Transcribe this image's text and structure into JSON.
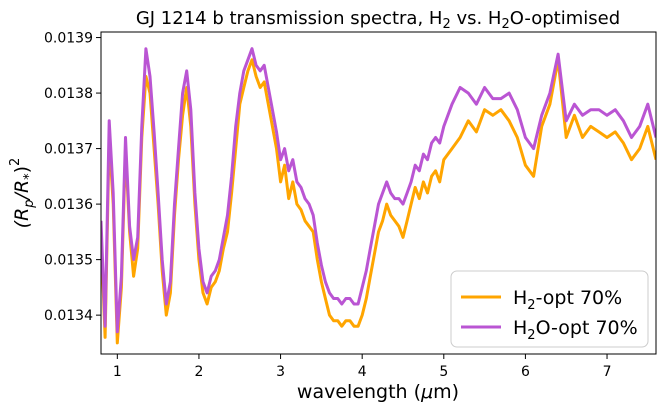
{
  "chart_data": {
    "type": "line",
    "title_parts": [
      "GJ 1214 b transmission spectra, H",
      "2",
      " vs. H",
      "2",
      "O-optimised"
    ],
    "xlabel_parts": [
      "wavelength (",
      "μ",
      "m)"
    ],
    "ylabel_parts": [
      "(R",
      "p",
      "/R",
      "*",
      ")",
      "2"
    ],
    "xlim": [
      0.8,
      7.6
    ],
    "ylim": [
      0.01333,
      0.01391
    ],
    "xticks": [
      1,
      2,
      3,
      4,
      5,
      6,
      7
    ],
    "yticks": [
      0.0134,
      0.0135,
      0.0136,
      0.0137,
      0.0138,
      0.0139
    ],
    "ytick_labels": [
      "0.0134",
      "0.0135",
      "0.0136",
      "0.0137",
      "0.0138",
      "0.0139"
    ],
    "legend_position": "lower-right",
    "series": [
      {
        "name_parts": [
          "H",
          "2",
          "-opt 70%"
        ],
        "color": "#FFA500",
        "x": [
          0.8,
          0.85,
          0.9,
          0.95,
          1.0,
          1.05,
          1.1,
          1.15,
          1.2,
          1.25,
          1.3,
          1.35,
          1.4,
          1.45,
          1.5,
          1.55,
          1.6,
          1.65,
          1.7,
          1.75,
          1.8,
          1.85,
          1.9,
          1.95,
          2.0,
          2.05,
          2.1,
          2.15,
          2.2,
          2.25,
          2.3,
          2.35,
          2.4,
          2.45,
          2.5,
          2.55,
          2.6,
          2.65,
          2.7,
          2.75,
          2.8,
          2.85,
          2.9,
          2.95,
          3.0,
          3.05,
          3.1,
          3.15,
          3.2,
          3.25,
          3.3,
          3.35,
          3.4,
          3.45,
          3.5,
          3.55,
          3.6,
          3.65,
          3.7,
          3.75,
          3.8,
          3.85,
          3.9,
          3.95,
          4.0,
          4.05,
          4.1,
          4.15,
          4.2,
          4.25,
          4.3,
          4.35,
          4.4,
          4.45,
          4.5,
          4.55,
          4.6,
          4.65,
          4.7,
          4.75,
          4.8,
          4.85,
          4.9,
          4.95,
          5.0,
          5.1,
          5.2,
          5.3,
          5.4,
          5.5,
          5.6,
          5.7,
          5.8,
          5.9,
          6.0,
          6.1,
          6.2,
          6.3,
          6.4,
          6.5,
          6.6,
          6.7,
          6.8,
          6.9,
          7.0,
          7.1,
          7.2,
          7.3,
          7.4,
          7.5,
          7.6
        ],
        "y": [
          0.01355,
          0.01336,
          0.01372,
          0.0136,
          0.01335,
          0.01345,
          0.0137,
          0.01355,
          0.01347,
          0.01352,
          0.01372,
          0.01383,
          0.0138,
          0.0137,
          0.0136,
          0.01348,
          0.0134,
          0.01344,
          0.01358,
          0.01368,
          0.01376,
          0.01381,
          0.01374,
          0.0136,
          0.0135,
          0.01344,
          0.01342,
          0.01345,
          0.01346,
          0.01348,
          0.01352,
          0.01355,
          0.01362,
          0.0137,
          0.01378,
          0.01381,
          0.01384,
          0.01386,
          0.01383,
          0.01381,
          0.01382,
          0.01378,
          0.01374,
          0.0137,
          0.01364,
          0.01367,
          0.01361,
          0.01364,
          0.0136,
          0.01359,
          0.01357,
          0.01356,
          0.01355,
          0.0135,
          0.01346,
          0.01343,
          0.0134,
          0.01339,
          0.01339,
          0.01338,
          0.01339,
          0.01339,
          0.01338,
          0.01338,
          0.0134,
          0.01343,
          0.01347,
          0.01351,
          0.01355,
          0.01357,
          0.0136,
          0.01358,
          0.01357,
          0.01356,
          0.01354,
          0.01357,
          0.0136,
          0.01363,
          0.01361,
          0.01364,
          0.01362,
          0.01365,
          0.01366,
          0.01364,
          0.01368,
          0.0137,
          0.01372,
          0.01375,
          0.01373,
          0.01377,
          0.01376,
          0.01377,
          0.01375,
          0.01372,
          0.01367,
          0.01365,
          0.01374,
          0.01378,
          0.01386,
          0.01372,
          0.01376,
          0.01372,
          0.01374,
          0.01373,
          0.01372,
          0.01373,
          0.01371,
          0.01368,
          0.0137,
          0.01374,
          0.01368
        ]
      },
      {
        "name_parts": [
          "H",
          "2",
          "O-opt 70%"
        ],
        "color": "#BA55D3",
        "x": [
          0.8,
          0.85,
          0.9,
          0.95,
          1.0,
          1.05,
          1.1,
          1.15,
          1.2,
          1.25,
          1.3,
          1.35,
          1.4,
          1.45,
          1.5,
          1.55,
          1.6,
          1.65,
          1.7,
          1.75,
          1.8,
          1.85,
          1.9,
          1.95,
          2.0,
          2.05,
          2.1,
          2.15,
          2.2,
          2.25,
          2.3,
          2.35,
          2.4,
          2.45,
          2.5,
          2.55,
          2.6,
          2.65,
          2.7,
          2.75,
          2.8,
          2.85,
          2.9,
          2.95,
          3.0,
          3.05,
          3.1,
          3.15,
          3.2,
          3.25,
          3.3,
          3.35,
          3.4,
          3.45,
          3.5,
          3.55,
          3.6,
          3.65,
          3.7,
          3.75,
          3.8,
          3.85,
          3.9,
          3.95,
          4.0,
          4.05,
          4.1,
          4.15,
          4.2,
          4.25,
          4.3,
          4.35,
          4.4,
          4.45,
          4.5,
          4.55,
          4.6,
          4.65,
          4.7,
          4.75,
          4.8,
          4.85,
          4.9,
          4.95,
          5.0,
          5.1,
          5.2,
          5.3,
          5.4,
          5.5,
          5.6,
          5.7,
          5.8,
          5.9,
          6.0,
          6.1,
          6.2,
          6.3,
          6.4,
          6.5,
          6.6,
          6.7,
          6.8,
          6.9,
          7.0,
          7.1,
          7.2,
          7.3,
          7.4,
          7.5,
          7.6
        ],
        "y": [
          0.01357,
          0.01338,
          0.01375,
          0.01362,
          0.01337,
          0.01347,
          0.01372,
          0.01356,
          0.0135,
          0.01354,
          0.01374,
          0.01388,
          0.01383,
          0.01373,
          0.01362,
          0.0135,
          0.01342,
          0.01346,
          0.0136,
          0.0137,
          0.0138,
          0.01384,
          0.01377,
          0.01362,
          0.01352,
          0.01346,
          0.01344,
          0.01347,
          0.01348,
          0.0135,
          0.01354,
          0.01358,
          0.01365,
          0.01374,
          0.0138,
          0.01384,
          0.01386,
          0.01388,
          0.01385,
          0.01384,
          0.01385,
          0.01381,
          0.01377,
          0.01373,
          0.01368,
          0.0137,
          0.01366,
          0.01368,
          0.01364,
          0.01363,
          0.01361,
          0.0136,
          0.01358,
          0.01353,
          0.01349,
          0.01346,
          0.01344,
          0.01343,
          0.01343,
          0.01342,
          0.01343,
          0.01343,
          0.01342,
          0.01342,
          0.01345,
          0.01348,
          0.01352,
          0.01356,
          0.0136,
          0.01362,
          0.01364,
          0.01362,
          0.01361,
          0.01361,
          0.0136,
          0.01362,
          0.01364,
          0.01367,
          0.01366,
          0.01369,
          0.01368,
          0.01371,
          0.01372,
          0.01371,
          0.01374,
          0.01378,
          0.01381,
          0.0138,
          0.01378,
          0.01381,
          0.01379,
          0.01379,
          0.0138,
          0.01377,
          0.01372,
          0.0137,
          0.01376,
          0.0138,
          0.01387,
          0.01375,
          0.01378,
          0.01376,
          0.01377,
          0.01377,
          0.01376,
          0.01377,
          0.01375,
          0.01372,
          0.01374,
          0.01378,
          0.01372
        ]
      }
    ]
  }
}
